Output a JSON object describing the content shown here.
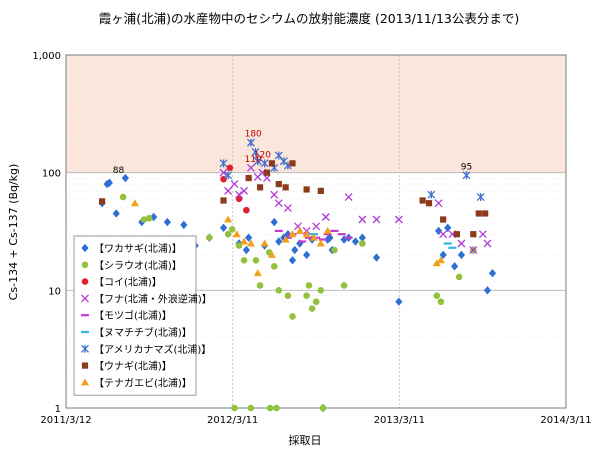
{
  "chart_data": {
    "type": "scatter",
    "title": "霞ヶ浦(北浦)の水産物中のセシウムの放射能濃度 (2013/11/13公表分まで)",
    "xlabel": "採取日",
    "ylabel": "Cs-134 + Cs-137 (Bq/kg)",
    "y_scale": "log",
    "ylim": [
      1,
      1000
    ],
    "xlim": [
      "2011-03-12",
      "2014-03-11"
    ],
    "x_ticks": [
      "2011/3/12",
      "2012/3/11",
      "2013/3/11",
      "2014/3/11"
    ],
    "y_ticks": [
      "1",
      "10",
      "100",
      "1,000"
    ],
    "limit_band": [
      100,
      1000
    ],
    "limit_band_color": "#fbe6dc",
    "grid": true,
    "legend_position": "left-middle",
    "annotations": [
      {
        "text": "88",
        "x": "2011-07-05",
        "y": 88,
        "color": "#000000"
      },
      {
        "text": "180",
        "x": "2012-04-25",
        "y": 180,
        "color": "#c00000"
      },
      {
        "text": "110",
        "x": "2012-04-25",
        "y": 110,
        "color": "#c00000"
      },
      {
        "text": "120",
        "x": "2012-05-15",
        "y": 120,
        "color": "#c00000"
      },
      {
        "text": "95",
        "x": "2013-08-05",
        "y": 95,
        "color": "#000000"
      }
    ],
    "series": [
      {
        "name": "【ワカサギ(北浦)】",
        "marker": "diamond",
        "color": "#2e6fd4",
        "points": [
          [
            "2011-05-30",
            55
          ],
          [
            "2011-06-10",
            80
          ],
          [
            "2011-06-15",
            82
          ],
          [
            "2011-06-30",
            45
          ],
          [
            "2011-07-20",
            90
          ],
          [
            "2011-08-25",
            38
          ],
          [
            "2011-09-20",
            42
          ],
          [
            "2011-10-20",
            38
          ],
          [
            "2011-11-25",
            36
          ],
          [
            "2011-12-20",
            24
          ],
          [
            "2012-01-20",
            28
          ],
          [
            "2012-02-20",
            34
          ],
          [
            "2012-03-25",
            25
          ],
          [
            "2012-04-10",
            22
          ],
          [
            "2012-04-15",
            28
          ],
          [
            "2012-05-20",
            24
          ],
          [
            "2012-06-10",
            38
          ],
          [
            "2012-06-20",
            26
          ],
          [
            "2012-07-01",
            28
          ],
          [
            "2012-07-10",
            30
          ],
          [
            "2012-07-20",
            18
          ],
          [
            "2012-07-25",
            22
          ],
          [
            "2012-08-05",
            25
          ],
          [
            "2012-08-20",
            20
          ],
          [
            "2012-09-01",
            27
          ],
          [
            "2012-09-25",
            1
          ],
          [
            "2012-10-05",
            27
          ],
          [
            "2012-10-10",
            28
          ],
          [
            "2012-10-15",
            22
          ],
          [
            "2012-11-10",
            27
          ],
          [
            "2012-11-20",
            28
          ],
          [
            "2012-12-05",
            26
          ],
          [
            "2012-12-20",
            28
          ],
          [
            "2013-01-20",
            19
          ],
          [
            "2013-03-10",
            8
          ],
          [
            "2013-06-05",
            32
          ],
          [
            "2013-06-15",
            20
          ],
          [
            "2013-06-25",
            34
          ],
          [
            "2013-07-10",
            16
          ],
          [
            "2013-07-25",
            20
          ],
          [
            "2013-08-20",
            22
          ],
          [
            "2013-09-20",
            10
          ],
          [
            "2013-10-01",
            14
          ]
        ]
      },
      {
        "name": "【シラウオ(北浦)】",
        "marker": "circle",
        "color": "#92c13d",
        "points": [
          [
            "2011-08-30",
            40
          ],
          [
            "2011-09-10",
            41
          ],
          [
            "2011-07-15",
            62
          ],
          [
            "2012-01-20",
            28
          ],
          [
            "2012-03-01",
            30
          ],
          [
            "2012-03-10",
            33
          ],
          [
            "2012-03-15",
            1
          ],
          [
            "2012-03-25",
            24
          ],
          [
            "2012-04-05",
            18
          ],
          [
            "2012-04-20",
            1
          ],
          [
            "2012-05-01",
            18
          ],
          [
            "2012-05-10",
            11
          ],
          [
            "2012-05-30",
            21
          ],
          [
            "2012-06-01",
            1
          ],
          [
            "2012-06-10",
            16
          ],
          [
            "2012-06-15",
            1
          ],
          [
            "2012-06-20",
            10
          ],
          [
            "2012-07-10",
            9
          ],
          [
            "2012-07-20",
            6
          ],
          [
            "2012-08-20",
            9
          ],
          [
            "2012-08-25",
            11
          ],
          [
            "2012-09-01",
            7
          ],
          [
            "2012-09-10",
            8
          ],
          [
            "2012-09-20",
            10
          ],
          [
            "2012-09-25",
            1
          ],
          [
            "2012-10-20",
            22
          ],
          [
            "2012-11-10",
            11
          ],
          [
            "2012-12-20",
            25
          ],
          [
            "2013-06-01",
            9
          ],
          [
            "2013-06-10",
            8
          ],
          [
            "2013-07-20",
            13
          ],
          [
            "2013-08-20",
            22
          ]
        ]
      },
      {
        "name": "【コイ(北浦)】",
        "marker": "circle",
        "color": "#e0202c",
        "points": [
          [
            "2012-02-20",
            88
          ],
          [
            "2012-03-05",
            110
          ],
          [
            "2012-03-25",
            60
          ],
          [
            "2012-04-10",
            48
          ]
        ]
      },
      {
        "name": "【フナ(北浦・外浪逆浦)】",
        "marker": "x",
        "color": "#b13bd6",
        "points": [
          [
            "2012-02-20",
            100
          ],
          [
            "2012-03-01",
            70
          ],
          [
            "2012-03-15",
            80
          ],
          [
            "2012-03-25",
            65
          ],
          [
            "2012-04-05",
            70
          ],
          [
            "2012-04-20",
            110
          ],
          [
            "2012-05-05",
            92
          ],
          [
            "2012-05-15",
            100
          ],
          [
            "2012-05-25",
            90
          ],
          [
            "2012-06-10",
            65
          ],
          [
            "2012-06-20",
            55
          ],
          [
            "2012-07-10",
            50
          ],
          [
            "2012-08-01",
            35
          ],
          [
            "2012-08-20",
            32
          ],
          [
            "2012-09-10",
            35
          ],
          [
            "2012-10-01",
            42
          ],
          [
            "2012-11-20",
            62
          ],
          [
            "2012-12-20",
            40
          ],
          [
            "2013-01-20",
            40
          ],
          [
            "2013-03-10",
            40
          ],
          [
            "2013-06-05",
            55
          ],
          [
            "2013-06-15",
            30
          ],
          [
            "2013-07-05",
            30
          ],
          [
            "2013-07-25",
            25
          ],
          [
            "2013-08-20",
            22
          ],
          [
            "2013-09-10",
            30
          ],
          [
            "2013-09-20",
            25
          ]
        ]
      },
      {
        "name": "【モツゴ(北浦)】",
        "marker": "dash",
        "color": "#c43ad0",
        "points": [
          [
            "2012-06-20",
            32
          ],
          [
            "2012-07-10",
            28
          ],
          [
            "2012-07-20",
            30
          ],
          [
            "2012-08-10",
            26
          ],
          [
            "2012-08-25",
            28
          ],
          [
            "2012-09-10",
            28
          ],
          [
            "2012-09-25",
            27
          ],
          [
            "2012-10-05",
            30
          ],
          [
            "2012-10-20",
            32
          ],
          [
            "2012-11-05",
            30
          ],
          [
            "2012-11-20",
            28
          ]
        ]
      },
      {
        "name": "【ヌマチチブ(北浦)】",
        "marker": "dash",
        "color": "#2fb7e0",
        "points": [
          [
            "2012-09-05",
            30
          ],
          [
            "2013-06-25",
            25
          ],
          [
            "2013-07-05",
            23
          ]
        ]
      },
      {
        "name": "【アメリカナマズ(北浦)】",
        "marker": "asterisk",
        "color": "#3f6fcf",
        "points": [
          [
            "2012-02-20",
            120
          ],
          [
            "2012-03-01",
            95
          ],
          [
            "2012-04-20",
            180
          ],
          [
            "2012-04-30",
            150
          ],
          [
            "2012-05-05",
            125
          ],
          [
            "2012-05-20",
            120
          ],
          [
            "2012-06-10",
            110
          ],
          [
            "2012-06-20",
            140
          ],
          [
            "2012-07-01",
            125
          ],
          [
            "2012-07-10",
            115
          ],
          [
            "2013-05-20",
            65
          ],
          [
            "2013-08-05",
            95
          ],
          [
            "2013-09-05",
            62
          ]
        ]
      },
      {
        "name": "【ウナギ(北浦)】",
        "marker": "square",
        "color": "#8b3a1a",
        "points": [
          [
            "2011-05-30",
            57
          ],
          [
            "2012-02-20",
            58
          ],
          [
            "2012-04-15",
            90
          ],
          [
            "2012-05-10",
            75
          ],
          [
            "2012-05-25",
            100
          ],
          [
            "2012-06-05",
            120
          ],
          [
            "2012-06-20",
            80
          ],
          [
            "2012-07-05",
            75
          ],
          [
            "2012-07-20",
            120
          ],
          [
            "2012-08-20",
            72
          ],
          [
            "2012-09-20",
            70
          ],
          [
            "2013-05-01",
            58
          ],
          [
            "2013-05-15",
            55
          ],
          [
            "2013-06-15",
            40
          ],
          [
            "2013-07-15",
            30
          ],
          [
            "2013-08-20",
            30
          ],
          [
            "2013-09-01",
            45
          ],
          [
            "2013-09-15",
            45
          ]
        ]
      },
      {
        "name": "【テナガエビ(北浦)】",
        "marker": "triangle",
        "color": "#f2a01b",
        "points": [
          [
            "2011-08-10",
            55
          ],
          [
            "2012-03-01",
            40
          ],
          [
            "2012-03-20",
            30
          ],
          [
            "2012-04-05",
            26
          ],
          [
            "2012-04-20",
            25
          ],
          [
            "2012-05-05",
            14
          ],
          [
            "2012-05-20",
            25
          ],
          [
            "2012-06-05",
            20
          ],
          [
            "2012-07-05",
            27
          ],
          [
            "2012-07-20",
            30
          ],
          [
            "2012-08-05",
            32
          ],
          [
            "2012-08-20",
            30
          ],
          [
            "2012-09-05",
            28
          ],
          [
            "2012-09-20",
            25
          ],
          [
            "2012-10-05",
            32
          ],
          [
            "2013-06-01",
            17
          ],
          [
            "2013-06-10",
            18
          ]
        ]
      }
    ]
  }
}
